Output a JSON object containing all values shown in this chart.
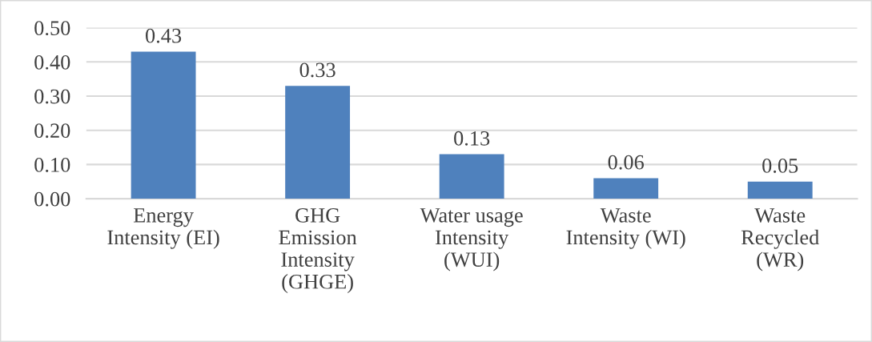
{
  "chart_data": {
    "type": "bar",
    "categories": [
      "Energy\nIntensity (EI)",
      "GHG\nEmission\nIntensity\n(GHGE)",
      "Water usage\nIntensity\n(WUI)",
      "Waste\nIntensity (WI)",
      "Waste\nRecycled\n(WR)"
    ],
    "values": [
      0.43,
      0.33,
      0.13,
      0.06,
      0.05
    ],
    "color": "#4f81bd",
    "data_labels": true,
    "ylim": [
      0,
      0.5
    ],
    "yticks": [
      {
        "value": 0,
        "label": "0.00"
      },
      {
        "value": 0.1,
        "label": "0.10"
      },
      {
        "value": 0.2,
        "label": "0.20"
      },
      {
        "value": 0.3,
        "label": "0.30"
      },
      {
        "value": 0.4,
        "label": "0.40"
      },
      {
        "value": 0.5,
        "label": "0.50"
      }
    ],
    "grid": "y"
  }
}
